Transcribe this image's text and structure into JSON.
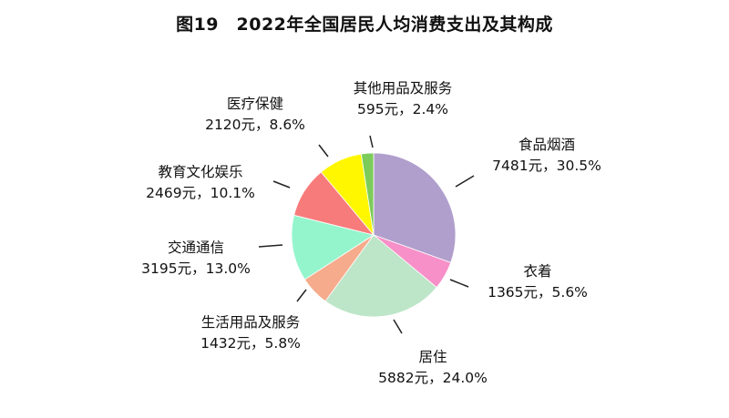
{
  "chart_data": {
    "type": "pie",
    "title": "图19　2022年全国居民人均消费支出及其构成",
    "unit": "元",
    "start": "top",
    "direction": "clockwise",
    "slices": [
      {
        "name": "食品烟酒",
        "value": 7481,
        "percent": 30.5,
        "value_text": "7481元，30.5%",
        "color": "#b09fcc"
      },
      {
        "name": "衣着",
        "value": 1365,
        "percent": 5.6,
        "value_text": "1365元，5.6%",
        "color": "#f78fc8"
      },
      {
        "name": "居住",
        "value": 5882,
        "percent": 24.0,
        "value_text": "5882元，24.0%",
        "color": "#bde5c8"
      },
      {
        "name": "生活用品及服务",
        "value": 1432,
        "percent": 5.8,
        "value_text": "1432元，5.8%",
        "color": "#f5ab8c"
      },
      {
        "name": "交通通信",
        "value": 3195,
        "percent": 13.0,
        "value_text": "3195元，13.0%",
        "color": "#94f5cc"
      },
      {
        "name": "教育文化娱乐",
        "value": 2469,
        "percent": 10.1,
        "value_text": "2469元，10.1%",
        "color": "#f87b7b"
      },
      {
        "name": "医疗保健",
        "value": 2120,
        "percent": 8.6,
        "value_text": "2120元，8.6%",
        "color": "#fff700"
      },
      {
        "name": "其他用品及服务",
        "value": 595,
        "percent": 2.4,
        "value_text": "595元，2.4%",
        "color": "#7ccc5a"
      }
    ]
  }
}
